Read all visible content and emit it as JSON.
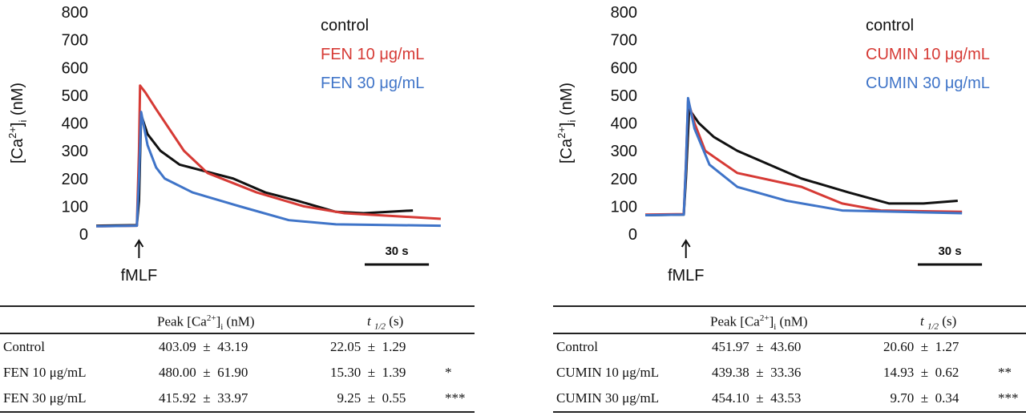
{
  "chart_data": [
    {
      "type": "line",
      "ylabel": "[Ca2+]i (nM)",
      "ylim": [
        0,
        800
      ],
      "yticks": [
        0,
        100,
        200,
        300,
        400,
        500,
        600,
        700,
        800
      ],
      "xunit": "s",
      "stimulus": "fMLF",
      "stimulus_t": 20,
      "scalebar": "30 s",
      "scalebar_len": 30,
      "legend_position": "top-right",
      "series": [
        {
          "name": "control",
          "color": "#111111",
          "points": [
            [
              0,
              30
            ],
            [
              19,
              32
            ],
            [
              20,
              120
            ],
            [
              21,
              430
            ],
            [
              24,
              360
            ],
            [
              30,
              300
            ],
            [
              39,
              250
            ],
            [
              64,
              200
            ],
            [
              79,
              150
            ],
            [
              94,
              120
            ],
            [
              112,
              80
            ],
            [
              125,
              75
            ],
            [
              148,
              85
            ]
          ]
        },
        {
          "name": "FEN 10 μg/mL",
          "color": "#d63a35",
          "points": [
            [
              0,
              28
            ],
            [
              19,
              30
            ],
            [
              20,
              300
            ],
            [
              20.5,
              535
            ],
            [
              23,
              510
            ],
            [
              28,
              450
            ],
            [
              41,
              300
            ],
            [
              52,
              220
            ],
            [
              75,
              150
            ],
            [
              97,
              100
            ],
            [
              116,
              75
            ],
            [
              161,
              55
            ]
          ]
        },
        {
          "name": "FEN 30 μg/mL",
          "color": "#3f74c8",
          "points": [
            [
              0,
              28
            ],
            [
              19,
              30
            ],
            [
              20,
              200
            ],
            [
              21,
              440
            ],
            [
              24,
              320
            ],
            [
              28,
              240
            ],
            [
              32,
              200
            ],
            [
              45,
              150
            ],
            [
              67,
              100
            ],
            [
              90,
              50
            ],
            [
              112,
              35
            ],
            [
              161,
              30
            ]
          ]
        }
      ]
    },
    {
      "type": "line",
      "ylabel": "[Ca2+]i (nM)",
      "ylim": [
        0,
        800
      ],
      "yticks": [
        0,
        100,
        200,
        300,
        400,
        500,
        600,
        700,
        800
      ],
      "xunit": "s",
      "stimulus": "fMLF",
      "stimulus_t": 19,
      "scalebar": "30 s",
      "scalebar_len": 30,
      "legend_position": "top-right",
      "series": [
        {
          "name": "control",
          "color": "#111111",
          "points": [
            [
              0,
              68
            ],
            [
              18,
              70
            ],
            [
              19,
              200
            ],
            [
              20.5,
              450
            ],
            [
              25,
              400
            ],
            [
              32,
              350
            ],
            [
              43,
              300
            ],
            [
              73,
              200
            ],
            [
              95,
              150
            ],
            [
              114,
              110
            ],
            [
              130,
              110
            ],
            [
              146,
              120
            ]
          ]
        },
        {
          "name": "CUMIN 10 μg/mL",
          "color": "#d63a35",
          "points": [
            [
              0,
              70
            ],
            [
              18,
              72
            ],
            [
              19,
              250
            ],
            [
              20,
              480
            ],
            [
              23,
              400
            ],
            [
              28,
              300
            ],
            [
              43,
              220
            ],
            [
              73,
              170
            ],
            [
              92,
              110
            ],
            [
              110,
              85
            ],
            [
              148,
              80
            ]
          ]
        },
        {
          "name": "CUMIN 30 μg/mL",
          "color": "#3f74c8",
          "points": [
            [
              0,
              68
            ],
            [
              18,
              70
            ],
            [
              19,
              250
            ],
            [
              20,
              490
            ],
            [
              23,
              380
            ],
            [
              30,
              250
            ],
            [
              43,
              170
            ],
            [
              66,
              120
            ],
            [
              92,
              85
            ],
            [
              148,
              75
            ]
          ]
        }
      ]
    }
  ],
  "tables": [
    {
      "headers": [
        "",
        "Peak [Ca2+]i (nM)",
        "t1/2 (s)"
      ],
      "rows": [
        {
          "name": "Control",
          "peak": "403.09  ±  43.19",
          "t": "22.05  ±  1.29",
          "sig": ""
        },
        {
          "name": "FEN 10 μg/mL",
          "peak": "480.00  ±  61.90",
          "t": "15.30  ±  1.39",
          "sig": "*"
        },
        {
          "name": "FEN 30 μg/mL",
          "peak": "415.92  ±  33.97",
          "t": "  9.25  ±  0.55",
          "sig": "***"
        }
      ]
    },
    {
      "headers": [
        "",
        "Peak [Ca2+]i (nM)",
        "t1/2 (s)"
      ],
      "rows": [
        {
          "name": "Control",
          "peak": "451.97  ±  43.60",
          "t": "20.60  ±  1.27",
          "sig": ""
        },
        {
          "name": "CUMIN 10 μg/mL",
          "peak": "439.38  ±  33.36",
          "t": "14.93  ±  0.62",
          "sig": "**"
        },
        {
          "name": "CUMIN 30 μg/mL",
          "peak": "454.10  ±  43.53",
          "t": "  9.70  ±  0.34",
          "sig": "***"
        }
      ]
    }
  ]
}
